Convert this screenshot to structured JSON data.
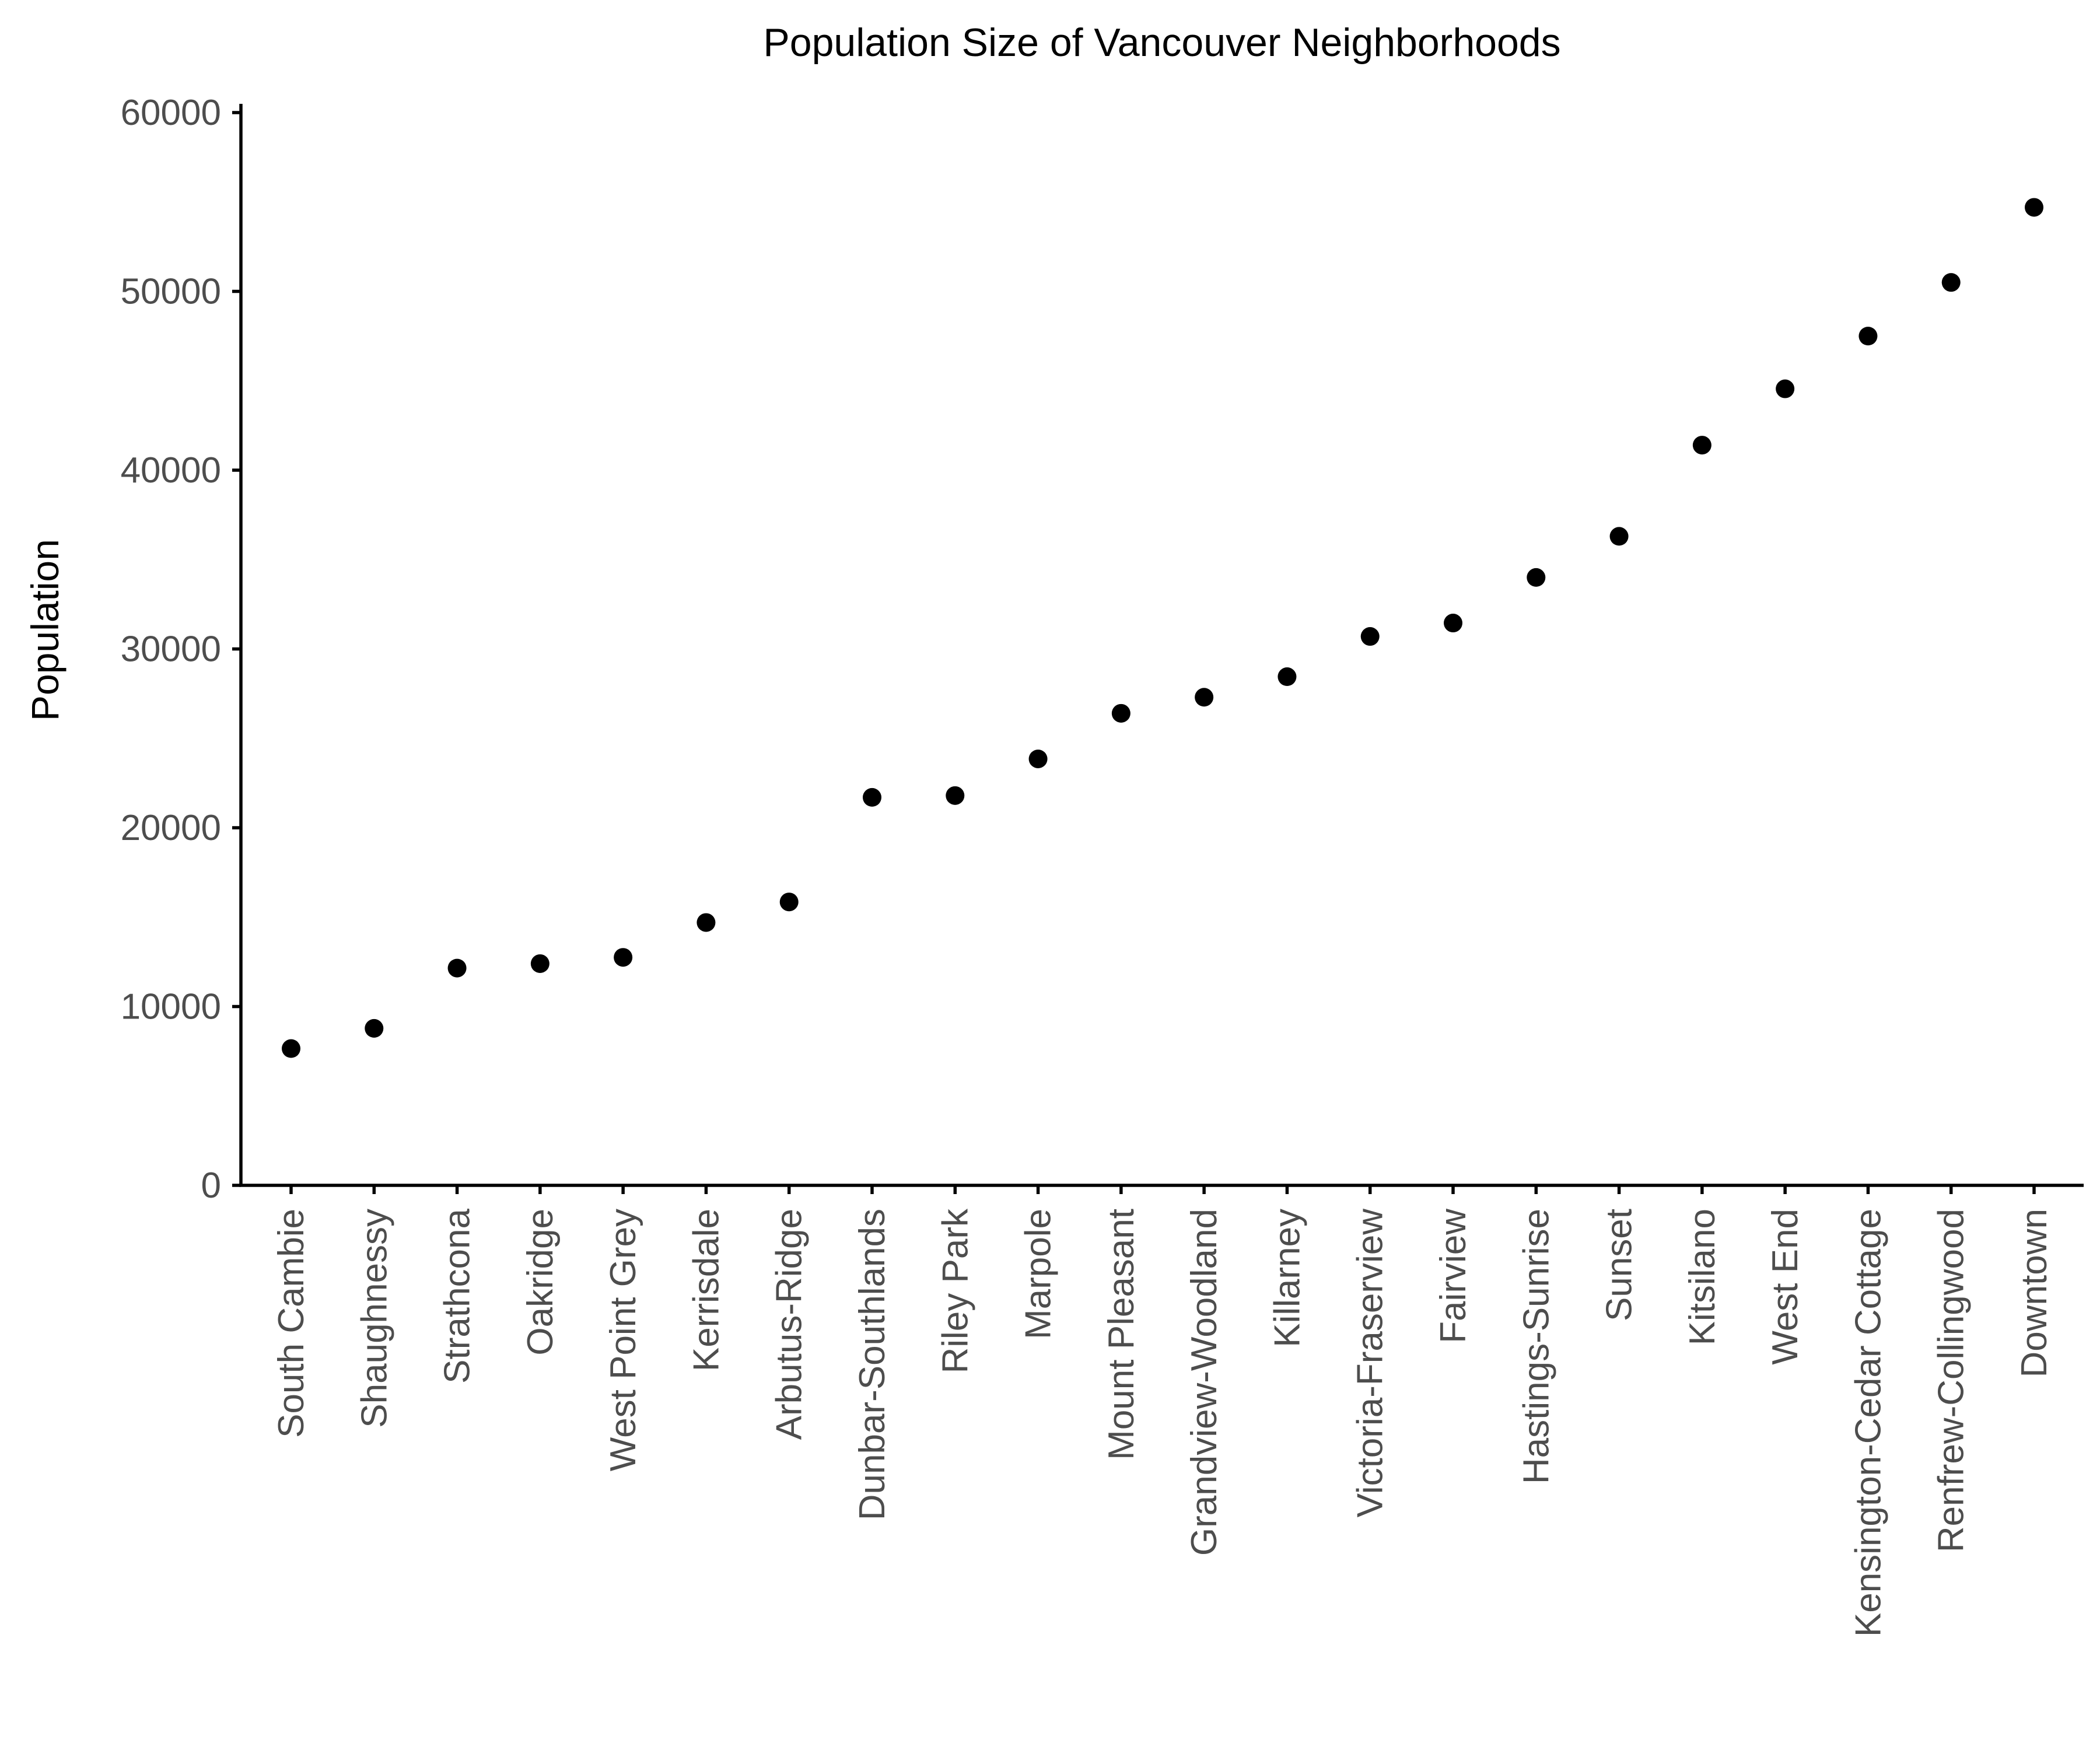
{
  "chart_data": {
    "type": "scatter",
    "title": "Population Size of Vancouver Neighborhoods",
    "xlabel": "",
    "ylabel": "Population",
    "categories": [
      "South Cambie",
      "Shaughnessy",
      "Strathcona",
      "Oakridge",
      "West Point Grey",
      "Kerrisdale",
      "Arbutus-Ridge",
      "Dunbar-Southlands",
      "Riley Park",
      "Marpole",
      "Mount Pleasant",
      "Grandview-Woodland",
      "Killarney",
      "Victoria-Fraserview",
      "Fairview",
      "Hastings-Sunrise",
      "Sunset",
      "Kitsilano",
      "West End",
      "Kensington-Cedar Cottage",
      "Renfrew-Collingwood",
      "Downtown"
    ],
    "values": [
      7650,
      8780,
      12150,
      12400,
      12750,
      14700,
      15850,
      21700,
      21800,
      23850,
      26400,
      27300,
      28450,
      30700,
      31450,
      34000,
      36300,
      41400,
      44550,
      47500,
      50500,
      54700
    ],
    "ylim": [
      0,
      60000
    ],
    "yticks": [
      0,
      10000,
      20000,
      30000,
      40000,
      50000,
      60000
    ],
    "grid": false,
    "legend": "none",
    "colors": {
      "point": "#000000",
      "axis": "#000000",
      "tick_label": "#4d4d4d"
    }
  }
}
